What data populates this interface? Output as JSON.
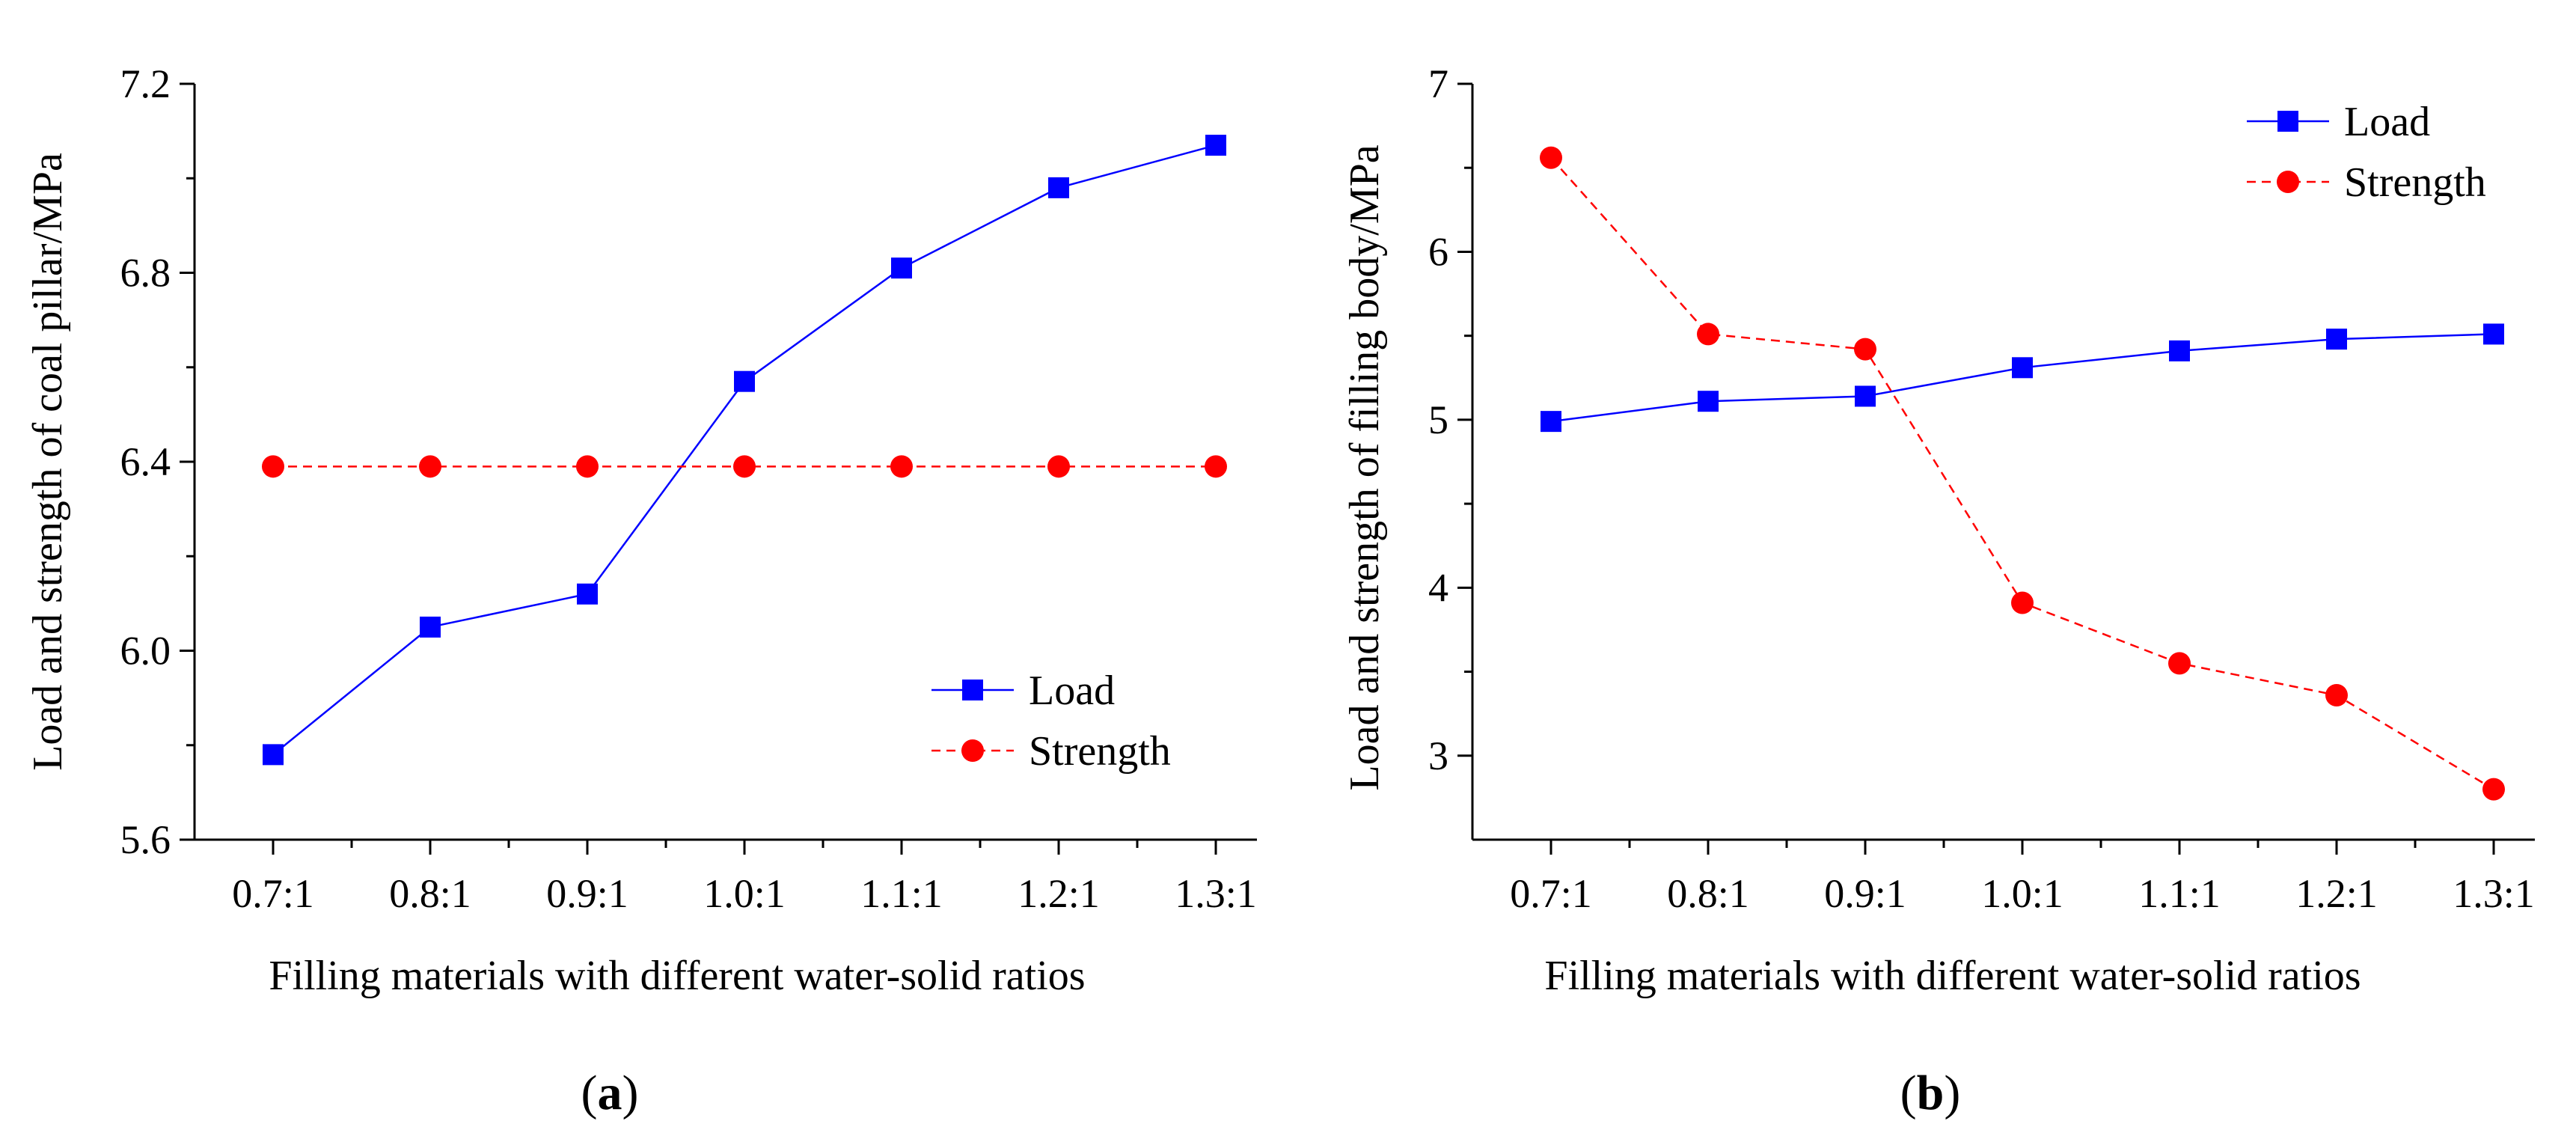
{
  "chart_data": [
    {
      "type": "line",
      "panel": "a",
      "xlabel": "Filling materials with different water-solid ratios",
      "ylabel": "Load and strength of coal pillar/MPa",
      "categories": [
        "0.7:1",
        "0.8:1",
        "0.9:1",
        "1.0:1",
        "1.1:1",
        "1.2:1",
        "1.3:1"
      ],
      "ylim": [
        5.6,
        7.2
      ],
      "yticks": [
        "5.6",
        "6.0",
        "6.4",
        "6.8",
        "7.2"
      ],
      "ytick_values": [
        5.6,
        6.0,
        6.4,
        6.8,
        7.2
      ],
      "grid": false,
      "legend_position": "bottom-right",
      "series": [
        {
          "name": "Load",
          "values": [
            5.78,
            6.05,
            6.12,
            6.57,
            6.81,
            6.98,
            7.07
          ],
          "color": "#0000ff",
          "marker": "square",
          "dash": "solid"
        },
        {
          "name": "Strength",
          "values": [
            6.39,
            6.39,
            6.39,
            6.39,
            6.39,
            6.39,
            6.39
          ],
          "color": "#ff0000",
          "marker": "circle",
          "dash": "dashed"
        }
      ]
    },
    {
      "type": "line",
      "panel": "b",
      "xlabel": "Filling materials with different water-solid ratios",
      "ylabel": "Load and strength of filling body/MPa",
      "categories": [
        "0.7:1",
        "0.8:1",
        "0.9:1",
        "1.0:1",
        "1.1:1",
        "1.2:1",
        "1.3:1"
      ],
      "ylim": [
        2.5,
        7
      ],
      "yticks": [
        "3",
        "4",
        "5",
        "6",
        "7"
      ],
      "ytick_values": [
        3,
        4,
        5,
        6,
        7
      ],
      "grid": false,
      "legend_position": "top-right",
      "series": [
        {
          "name": "Load",
          "values": [
            4.99,
            5.11,
            5.14,
            5.31,
            5.41,
            5.48,
            5.51
          ],
          "color": "#0000ff",
          "marker": "square",
          "dash": "solid"
        },
        {
          "name": "Strength",
          "values": [
            6.56,
            5.51,
            5.42,
            3.91,
            3.55,
            3.36,
            2.8
          ],
          "color": "#ff0000",
          "marker": "circle",
          "dash": "dashed"
        }
      ]
    }
  ],
  "panel_labels": {
    "a": {
      "open": "(",
      "letter": "a",
      "close": ")"
    },
    "b": {
      "open": "(",
      "letter": "b",
      "close": ")"
    }
  }
}
